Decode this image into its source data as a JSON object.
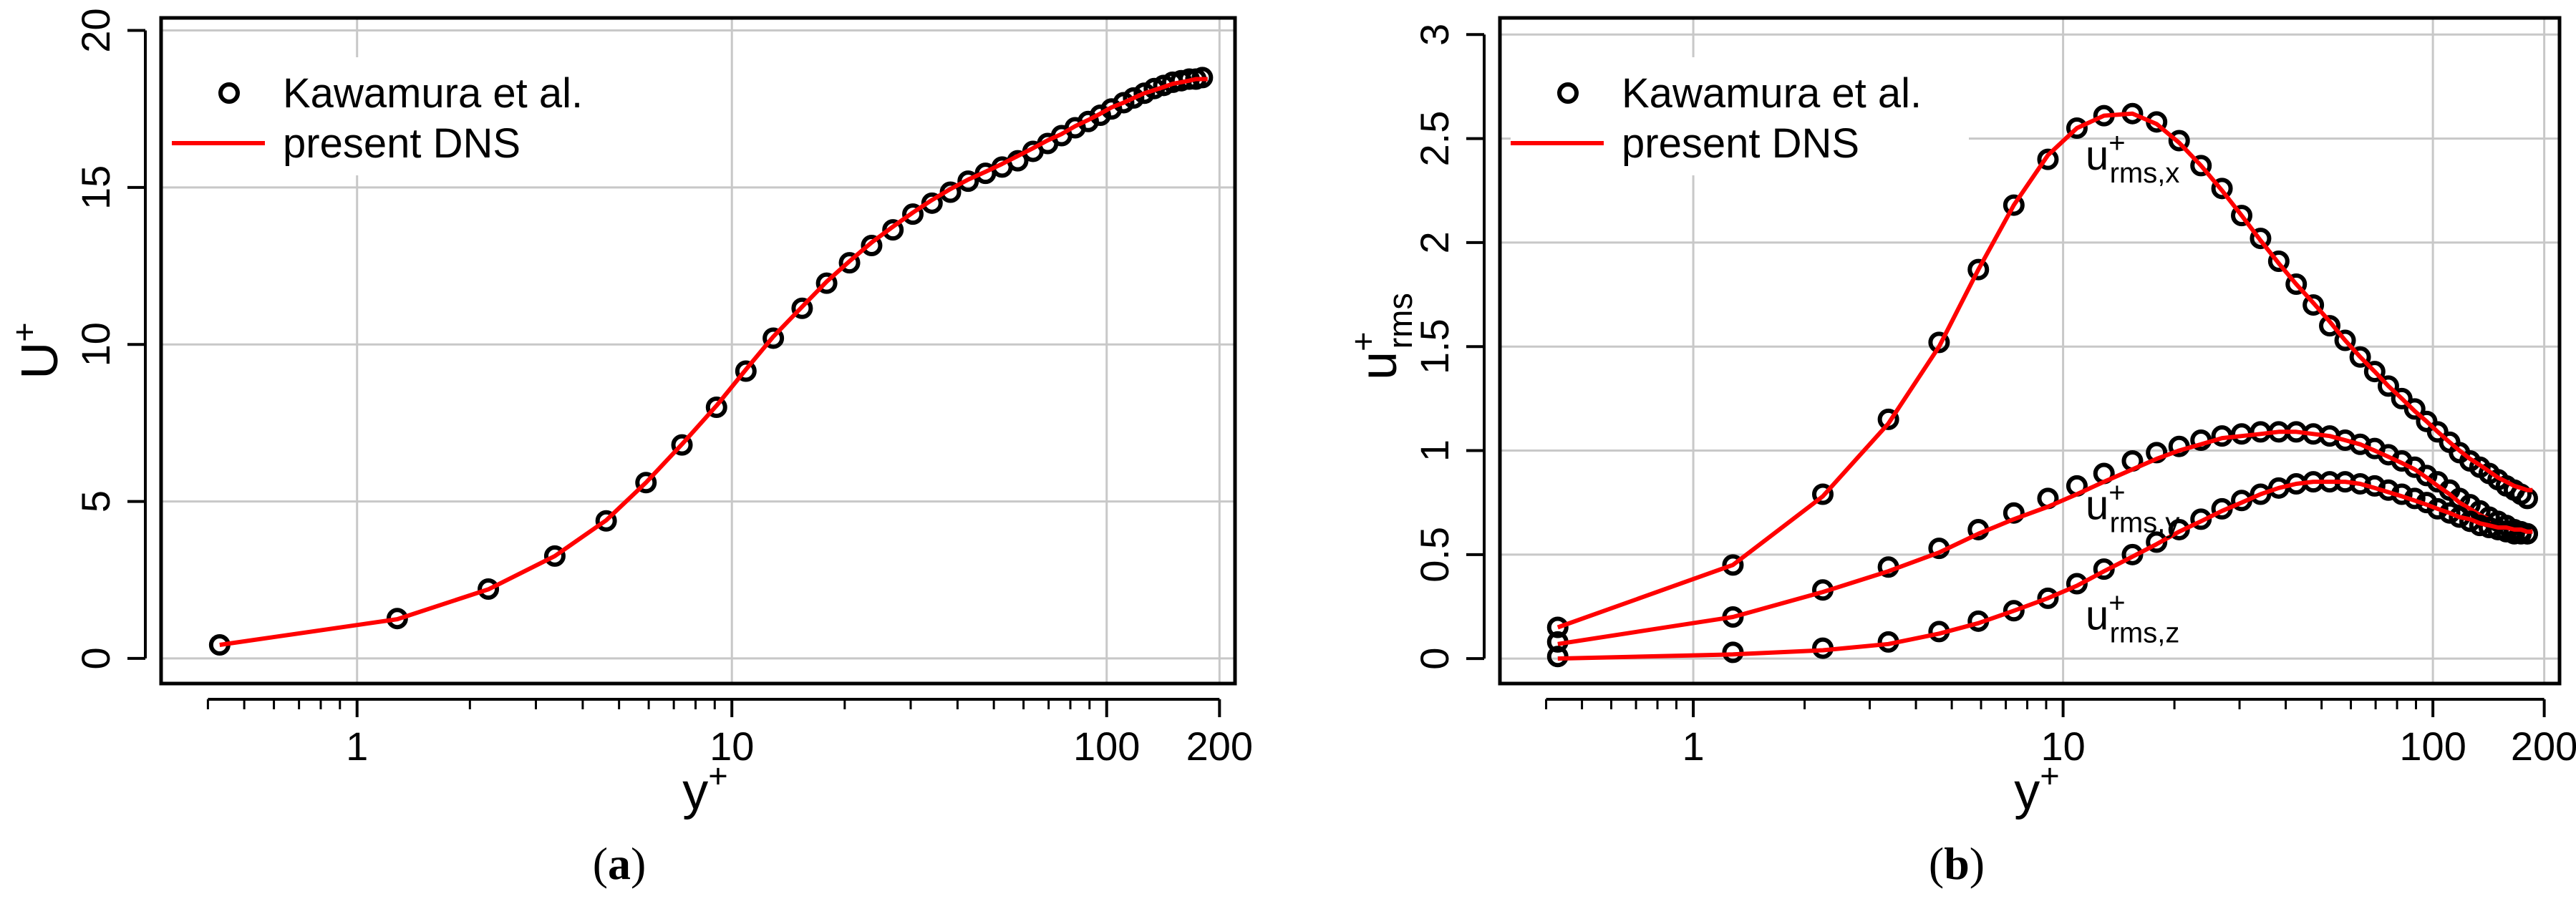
{
  "colors": {
    "dns_line": "#ff0000",
    "markers": "#000000",
    "grid": "#c8c8c8",
    "frame": "#000000"
  },
  "captions": [
    {
      "open": "(",
      "letter": "a",
      "close": ")"
    },
    {
      "open": "(",
      "letter": "b",
      "close": ")"
    }
  ],
  "chart_data": [
    {
      "type": "line",
      "panel": "a",
      "title": "",
      "xlabel": "y+",
      "ylabel": "U+",
      "xscale": "log",
      "xlim": [
        0.3,
        220
      ],
      "ylim": [
        -0.8,
        20.4
      ],
      "xticks": [
        1,
        10,
        100,
        200
      ],
      "xtick_labels": [
        "1",
        "10",
        "100",
        "200"
      ],
      "yticks": [
        0,
        5,
        10,
        15,
        20
      ],
      "ytick_labels": [
        "0",
        "5",
        "10",
        "15",
        "20"
      ],
      "minor_xticks": [
        0.4,
        0.5,
        0.6,
        0.7,
        0.8,
        0.9,
        2,
        3,
        4,
        5,
        6,
        7,
        8,
        9,
        20,
        30,
        40,
        50,
        60,
        70,
        80,
        90
      ],
      "grid": true,
      "legend": {
        "position": "top-left",
        "entries": [
          "Kawamura et al.",
          "present DNS"
        ]
      },
      "series": [
        {
          "name": "Kawamura et al.",
          "style": "open-circle",
          "x": [
            0.43,
            1.28,
            2.24,
            3.37,
            4.62,
            5.9,
            7.36,
            9.1,
            10.9,
            12.9,
            15.4,
            17.9,
            20.6,
            23.6,
            26.9,
            30.4,
            34.2,
            38.3,
            42.7,
            47.5,
            52.6,
            57.9,
            63.6,
            69.6,
            75.8,
            82.4,
            89.3,
            96.2,
            103,
            111,
            118,
            126,
            134,
            142,
            150,
            158,
            166,
            173,
            180
          ],
          "y": [
            0.43,
            1.27,
            2.21,
            3.26,
            4.38,
            5.6,
            6.8,
            8.0,
            9.15,
            10.2,
            11.15,
            11.95,
            12.6,
            13.15,
            13.65,
            14.15,
            14.5,
            14.85,
            15.2,
            15.45,
            15.65,
            15.85,
            16.15,
            16.4,
            16.65,
            16.9,
            17.1,
            17.3,
            17.5,
            17.7,
            17.85,
            18.0,
            18.15,
            18.25,
            18.35,
            18.4,
            18.45,
            18.45,
            18.5
          ]
        },
        {
          "name": "present DNS",
          "style": "solid",
          "x": [
            0.43,
            1.28,
            2.24,
            3.37,
            4.62,
            5.9,
            7.36,
            9.1,
            10.9,
            12.9,
            15.4,
            17.9,
            20.6,
            23.6,
            26.9,
            30.4,
            34.2,
            38.3,
            42.7,
            47.5,
            52.6,
            57.9,
            63.6,
            69.6,
            75.8,
            82.4,
            89.3,
            96.2,
            103,
            111,
            118,
            126,
            134,
            142,
            150,
            158,
            166,
            173,
            180,
            186
          ],
          "y": [
            0.43,
            1.25,
            2.2,
            3.26,
            4.4,
            5.6,
            6.82,
            8.05,
            9.2,
            10.25,
            11.2,
            12.0,
            12.65,
            13.25,
            13.75,
            14.2,
            14.6,
            14.95,
            15.25,
            15.5,
            15.75,
            16.0,
            16.25,
            16.5,
            16.7,
            16.95,
            17.15,
            17.35,
            17.55,
            17.7,
            17.85,
            18.0,
            18.1,
            18.2,
            18.3,
            18.35,
            18.4,
            18.45,
            18.45,
            18.45
          ]
        }
      ],
      "annotations": []
    },
    {
      "type": "line",
      "panel": "b",
      "title": "",
      "xlabel": "y+",
      "ylabel": "u+rms",
      "xscale": "log",
      "xlim": [
        0.3,
        220
      ],
      "ylim": [
        -0.12,
        3.08
      ],
      "xticks": [
        1,
        10,
        100,
        200
      ],
      "xtick_labels": [
        "1",
        "10",
        "100",
        "200"
      ],
      "yticks": [
        0,
        0.5,
        1,
        1.5,
        2,
        2.5,
        3
      ],
      "ytick_labels": [
        "0",
        "0.5",
        "1",
        "1.5",
        "2",
        "2.5",
        "3"
      ],
      "minor_xticks": [
        0.4,
        0.5,
        0.6,
        0.7,
        0.8,
        0.9,
        2,
        3,
        4,
        5,
        6,
        7,
        8,
        9,
        20,
        30,
        40,
        50,
        60,
        70,
        80,
        90
      ],
      "grid": true,
      "legend": {
        "position": "top-left",
        "entries": [
          "Kawamura et al.",
          "present DNS"
        ]
      },
      "series": [
        {
          "name": "Kawamura et al. (u+rms,x)",
          "style": "open-circle",
          "x": [
            0.43,
            1.28,
            2.24,
            3.37,
            4.62,
            5.9,
            7.36,
            9.1,
            10.9,
            12.9,
            15.4,
            17.9,
            20.6,
            23.6,
            26.9,
            30.4,
            34.2,
            38.3,
            42.7,
            47.5,
            52.6,
            57.9,
            63.6,
            69.6,
            75.8,
            82.4,
            89.3,
            96.2,
            103,
            111,
            118,
            126,
            134,
            142,
            150,
            158,
            166,
            173,
            180
          ],
          "y": [
            0.15,
            0.45,
            0.79,
            1.15,
            1.52,
            1.87,
            2.18,
            2.4,
            2.55,
            2.61,
            2.62,
            2.58,
            2.49,
            2.37,
            2.26,
            2.13,
            2.02,
            1.91,
            1.8,
            1.7,
            1.6,
            1.53,
            1.45,
            1.38,
            1.31,
            1.25,
            1.2,
            1.14,
            1.09,
            1.04,
            0.99,
            0.95,
            0.92,
            0.89,
            0.86,
            0.83,
            0.81,
            0.79,
            0.77
          ]
        },
        {
          "name": "present DNS (u+rms,x)",
          "style": "solid",
          "x": [
            0.43,
            1.28,
            2.24,
            3.37,
            4.62,
            5.9,
            7.36,
            9.1,
            10.9,
            12.9,
            15.4,
            17.9,
            20.6,
            23.6,
            26.9,
            30.4,
            34.2,
            38.3,
            42.7,
            47.5,
            52.6,
            57.9,
            63.6,
            69.6,
            75.8,
            82.4,
            89.3,
            96.2,
            103,
            111,
            118,
            126,
            134,
            142,
            150,
            158,
            166,
            173,
            180,
            186
          ],
          "y": [
            0.15,
            0.45,
            0.78,
            1.13,
            1.5,
            1.87,
            2.18,
            2.42,
            2.55,
            2.61,
            2.62,
            2.57,
            2.48,
            2.37,
            2.25,
            2.13,
            2.01,
            1.9,
            1.8,
            1.71,
            1.62,
            1.53,
            1.45,
            1.38,
            1.31,
            1.25,
            1.19,
            1.14,
            1.09,
            1.04,
            1.0,
            0.96,
            0.93,
            0.9,
            0.87,
            0.85,
            0.83,
            0.82,
            0.81,
            0.81
          ]
        },
        {
          "name": "Kawamura et al. (u+rms,y)",
          "style": "open-circle",
          "x": [
            0.43,
            1.28,
            2.24,
            3.37,
            4.62,
            5.9,
            7.36,
            9.1,
            10.9,
            12.9,
            15.4,
            17.9,
            20.6,
            23.6,
            26.9,
            30.4,
            34.2,
            38.3,
            42.7,
            47.5,
            52.6,
            57.9,
            63.6,
            69.6,
            75.8,
            82.4,
            89.3,
            96.2,
            103,
            111,
            118,
            126,
            134,
            142,
            150,
            158,
            166,
            173,
            180
          ],
          "y": [
            0.08,
            0.2,
            0.33,
            0.44,
            0.53,
            0.62,
            0.7,
            0.77,
            0.83,
            0.89,
            0.95,
            0.99,
            1.02,
            1.05,
            1.07,
            1.08,
            1.09,
            1.09,
            1.09,
            1.08,
            1.07,
            1.05,
            1.03,
            1.01,
            0.98,
            0.95,
            0.92,
            0.88,
            0.85,
            0.81,
            0.77,
            0.74,
            0.71,
            0.68,
            0.66,
            0.64,
            0.62,
            0.61,
            0.6
          ]
        },
        {
          "name": "present DNS (u+rms,y)",
          "style": "solid",
          "x": [
            0.43,
            1.28,
            2.24,
            3.37,
            4.62,
            5.9,
            7.36,
            9.1,
            10.9,
            12.9,
            15.4,
            17.9,
            20.6,
            23.6,
            26.9,
            30.4,
            34.2,
            38.3,
            42.7,
            47.5,
            52.6,
            57.9,
            63.6,
            69.6,
            75.8,
            82.4,
            89.3,
            96.2,
            103,
            111,
            118,
            126,
            134,
            142,
            150,
            158,
            166,
            173,
            180,
            186
          ],
          "y": [
            0.07,
            0.2,
            0.32,
            0.42,
            0.51,
            0.6,
            0.67,
            0.73,
            0.79,
            0.85,
            0.91,
            0.96,
            1.0,
            1.03,
            1.06,
            1.07,
            1.08,
            1.09,
            1.09,
            1.08,
            1.07,
            1.05,
            1.03,
            1.0,
            0.97,
            0.94,
            0.91,
            0.87,
            0.83,
            0.79,
            0.75,
            0.72,
            0.69,
            0.67,
            0.65,
            0.63,
            0.62,
            0.61,
            0.61,
            0.61
          ]
        },
        {
          "name": "Kawamura et al. (u+rms,z)",
          "style": "open-circle",
          "x": [
            0.43,
            1.28,
            2.24,
            3.37,
            4.62,
            5.9,
            7.36,
            9.1,
            10.9,
            12.9,
            15.4,
            17.9,
            20.6,
            23.6,
            26.9,
            30.4,
            34.2,
            38.3,
            42.7,
            47.5,
            52.6,
            57.9,
            63.6,
            69.6,
            75.8,
            82.4,
            89.3,
            96.2,
            103,
            111,
            118,
            126,
            134,
            142,
            150,
            158,
            166,
            173,
            180
          ],
          "y": [
            0.01,
            0.03,
            0.05,
            0.08,
            0.13,
            0.18,
            0.23,
            0.29,
            0.36,
            0.43,
            0.5,
            0.56,
            0.62,
            0.67,
            0.72,
            0.76,
            0.79,
            0.82,
            0.84,
            0.85,
            0.85,
            0.85,
            0.84,
            0.83,
            0.81,
            0.79,
            0.77,
            0.75,
            0.72,
            0.7,
            0.68,
            0.66,
            0.64,
            0.63,
            0.62,
            0.61,
            0.6,
            0.6,
            0.6
          ]
        },
        {
          "name": "present DNS (u+rms,z)",
          "style": "solid",
          "x": [
            0.43,
            1.28,
            2.24,
            3.37,
            4.62,
            5.9,
            7.36,
            9.1,
            10.9,
            12.9,
            15.4,
            17.9,
            20.6,
            23.6,
            26.9,
            30.4,
            34.2,
            38.3,
            42.7,
            47.5,
            52.6,
            57.9,
            63.6,
            69.6,
            75.8,
            82.4,
            89.3,
            96.2,
            103,
            111,
            118,
            126,
            134,
            142,
            150,
            158,
            166,
            173,
            180,
            186
          ],
          "y": [
            0.0,
            0.02,
            0.04,
            0.07,
            0.12,
            0.17,
            0.23,
            0.29,
            0.35,
            0.42,
            0.49,
            0.55,
            0.61,
            0.66,
            0.71,
            0.75,
            0.79,
            0.82,
            0.84,
            0.85,
            0.85,
            0.85,
            0.84,
            0.82,
            0.8,
            0.78,
            0.76,
            0.74,
            0.72,
            0.7,
            0.68,
            0.67,
            0.65,
            0.64,
            0.63,
            0.63,
            0.62,
            0.62,
            0.61,
            0.61
          ]
        }
      ],
      "annotations": [
        {
          "base": "u",
          "sup": "+",
          "sub": "rms,x",
          "x": 11.5,
          "y": 2.35
        },
        {
          "base": "u",
          "sup": "+",
          "sub": "rms,y",
          "x": 11.5,
          "y": 0.67
        },
        {
          "base": "u",
          "sup": "+",
          "sub": "rms,z",
          "x": 11.5,
          "y": 0.14
        }
      ]
    }
  ]
}
